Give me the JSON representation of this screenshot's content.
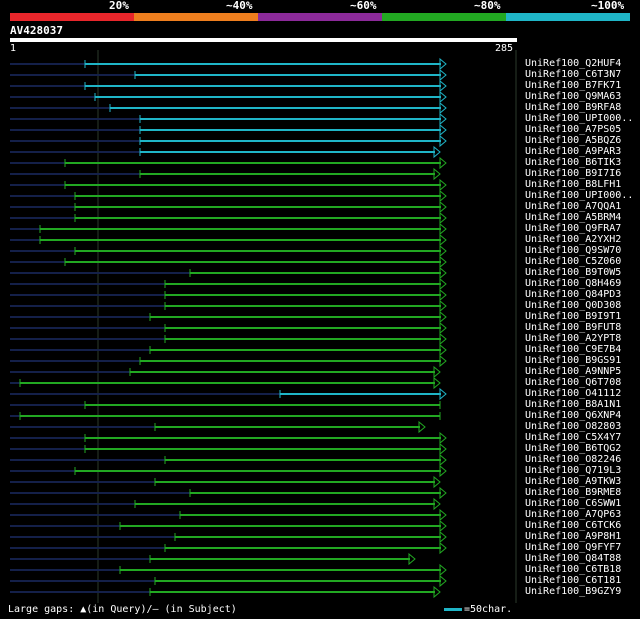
{
  "legend": {
    "labels": [
      "20%",
      "~40%",
      "~60%",
      "~80%",
      "~100%"
    ],
    "colors": [
      "#e8262b",
      "#ee7e1e",
      "#8c2a9a",
      "#22a822",
      "#1fb5c7"
    ]
  },
  "query": {
    "name": "AV428037",
    "start": "1",
    "end": "285"
  },
  "colors": {
    "hit_green": "#22a822",
    "hit_cyan": "#1fb5c7",
    "track": "#14204a",
    "grid": "#2c3a2c"
  },
  "hits": [
    {
      "id": "UniRef100_Q2HUF4",
      "start": 85,
      "end": 446,
      "color": "cyan",
      "arrow": true
    },
    {
      "id": "UniRef100_C6T3N7",
      "start": 135,
      "end": 446,
      "color": "cyan",
      "arrow": true
    },
    {
      "id": "UniRef100_B7FK71",
      "start": 85,
      "end": 446,
      "color": "cyan",
      "arrow": true
    },
    {
      "id": "UniRef100_Q9MA63",
      "start": 95,
      "end": 446,
      "color": "cyan",
      "arrow": true
    },
    {
      "id": "UniRef100_B9RFA8",
      "start": 110,
      "end": 446,
      "color": "cyan",
      "arrow": true
    },
    {
      "id": "UniRef100_UPI000..",
      "start": 140,
      "end": 446,
      "color": "cyan",
      "arrow": true
    },
    {
      "id": "UniRef100_A7PS05",
      "start": 140,
      "end": 446,
      "color": "cyan",
      "arrow": true
    },
    {
      "id": "UniRef100_A5BQZ6",
      "start": 140,
      "end": 446,
      "color": "cyan",
      "arrow": true
    },
    {
      "id": "UniRef100_A9PAR3",
      "start": 140,
      "end": 440,
      "color": "cyan",
      "arrow": true
    },
    {
      "id": "UniRef100_B6TIK3",
      "start": 65,
      "end": 446,
      "color": "green",
      "arrow": true
    },
    {
      "id": "UniRef100_B9I7I6",
      "start": 140,
      "end": 440,
      "color": "green",
      "arrow": true
    },
    {
      "id": "UniRef100_B8LFH1",
      "start": 65,
      "end": 446,
      "color": "green",
      "arrow": true
    },
    {
      "id": "UniRef100_UPI000..",
      "start": 75,
      "end": 446,
      "color": "green",
      "arrow": true
    },
    {
      "id": "UniRef100_A7QQA1",
      "start": 75,
      "end": 446,
      "color": "green",
      "arrow": true
    },
    {
      "id": "UniRef100_A5BRM4",
      "start": 75,
      "end": 446,
      "color": "green",
      "arrow": true
    },
    {
      "id": "UniRef100_Q9FRA7",
      "start": 40,
      "end": 446,
      "color": "green",
      "arrow": true
    },
    {
      "id": "UniRef100_A2YXH2",
      "start": 40,
      "end": 446,
      "color": "green",
      "arrow": true
    },
    {
      "id": "UniRef100_Q9SW70",
      "start": 75,
      "end": 446,
      "color": "green",
      "arrow": true
    },
    {
      "id": "UniRef100_C5Z060",
      "start": 65,
      "end": 446,
      "color": "green",
      "arrow": true
    },
    {
      "id": "UniRef100_B9T0W5",
      "start": 190,
      "end": 446,
      "color": "green",
      "arrow": true
    },
    {
      "id": "UniRef100_Q8H469",
      "start": 165,
      "end": 446,
      "color": "green",
      "arrow": true
    },
    {
      "id": "UniRef100_Q84PD3",
      "start": 165,
      "end": 446,
      "color": "green",
      "arrow": true
    },
    {
      "id": "UniRef100_Q0D308",
      "start": 165,
      "end": 446,
      "color": "green",
      "arrow": true
    },
    {
      "id": "UniRef100_B9I9T1",
      "start": 150,
      "end": 446,
      "color": "green",
      "arrow": true
    },
    {
      "id": "UniRef100_B9FUT8",
      "start": 165,
      "end": 446,
      "color": "green",
      "arrow": true
    },
    {
      "id": "UniRef100_A2YPT8",
      "start": 165,
      "end": 446,
      "color": "green",
      "arrow": true
    },
    {
      "id": "UniRef100_C9E7B4",
      "start": 150,
      "end": 446,
      "color": "green",
      "arrow": true
    },
    {
      "id": "UniRef100_B9GS91",
      "start": 140,
      "end": 446,
      "color": "green",
      "arrow": true
    },
    {
      "id": "UniRef100_A9NNP5",
      "start": 130,
      "end": 440,
      "color": "green",
      "arrow": true
    },
    {
      "id": "UniRef100_Q6T708",
      "start": 20,
      "end": 440,
      "color": "green",
      "arrow": true
    },
    {
      "id": "UniRef100_O41112",
      "start": 280,
      "end": 446,
      "color": "cyan",
      "arrow": true
    },
    {
      "id": "UniRef100_B8A1N1",
      "start": 85,
      "end": 440,
      "color": "green",
      "arrow": false
    },
    {
      "id": "UniRef100_Q6XNP4",
      "start": 20,
      "end": 440,
      "color": "green",
      "arrow": false
    },
    {
      "id": "UniRef100_O82803",
      "start": 155,
      "end": 425,
      "color": "green",
      "arrow": true
    },
    {
      "id": "UniRef100_C5X4Y7",
      "start": 85,
      "end": 446,
      "color": "green",
      "arrow": true
    },
    {
      "id": "UniRef100_B6TQG2",
      "start": 85,
      "end": 446,
      "color": "green",
      "arrow": true
    },
    {
      "id": "UniRef100_O82246",
      "start": 165,
      "end": 446,
      "color": "green",
      "arrow": true
    },
    {
      "id": "UniRef100_Q719L3",
      "start": 75,
      "end": 446,
      "color": "green",
      "arrow": true
    },
    {
      "id": "UniRef100_A9TKW3",
      "start": 155,
      "end": 440,
      "color": "green",
      "arrow": true
    },
    {
      "id": "UniRef100_B9RME8",
      "start": 190,
      "end": 446,
      "color": "green",
      "arrow": true
    },
    {
      "id": "UniRef100_C6SWW1",
      "start": 135,
      "end": 440,
      "color": "green",
      "arrow": true
    },
    {
      "id": "UniRef100_A7QP63",
      "start": 180,
      "end": 446,
      "color": "green",
      "arrow": true
    },
    {
      "id": "UniRef100_C6TCK6",
      "start": 120,
      "end": 446,
      "color": "green",
      "arrow": true
    },
    {
      "id": "UniRef100_A9P8H1",
      "start": 175,
      "end": 446,
      "color": "green",
      "arrow": true
    },
    {
      "id": "UniRef100_Q9FYF7",
      "start": 165,
      "end": 446,
      "color": "green",
      "arrow": true
    },
    {
      "id": "UniRef100_Q84T88",
      "start": 150,
      "end": 415,
      "color": "green",
      "arrow": true
    },
    {
      "id": "UniRef100_C6TB18",
      "start": 120,
      "end": 446,
      "color": "green",
      "arrow": true
    },
    {
      "id": "UniRef100_C6T181",
      "start": 155,
      "end": 446,
      "color": "green",
      "arrow": true
    },
    {
      "id": "UniRef100_B9GZY9",
      "start": 150,
      "end": 440,
      "color": "green",
      "arrow": true
    }
  ],
  "footer": {
    "gaps_text": "Large gaps: ▲(in Query)/— (in Subject)",
    "scale_text": "=50char."
  }
}
